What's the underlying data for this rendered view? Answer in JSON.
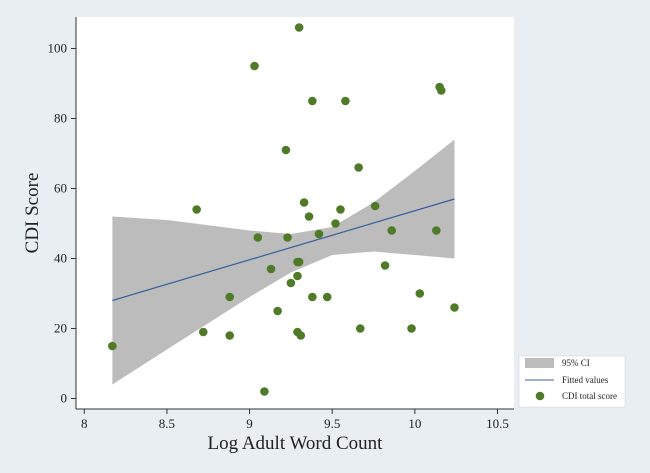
{
  "chart_data": {
    "type": "scatter",
    "xlabel": "Log Adult Word Count",
    "ylabel": "CDI Score",
    "xlim": [
      7.95,
      10.6
    ],
    "ylim": [
      -3,
      109
    ],
    "xticks": [
      8,
      8.5,
      9,
      9.5,
      10,
      10.5
    ],
    "yticks": [
      0,
      20,
      40,
      60,
      80,
      100
    ],
    "grid": false,
    "legend_position": "bottom-right",
    "legend": [
      "95% CI",
      "Fitted values",
      "CDI total score"
    ],
    "colors": {
      "points": "#4f7a28",
      "fit_line": "#34609a",
      "ci_band": "#bcbcbc",
      "plot_bg": "#ffffff",
      "outer_bg": "#e8eef2"
    },
    "fit": {
      "x": [
        8.17,
        10.24
      ],
      "y": [
        28,
        57
      ]
    },
    "ci_band": {
      "x": [
        8.17,
        8.5,
        9.0,
        9.25,
        9.5,
        9.75,
        10.0,
        10.24
      ],
      "lower": [
        4,
        14,
        29,
        36,
        41,
        42,
        41,
        40
      ],
      "upper": [
        52,
        51,
        48,
        47,
        49,
        56,
        65,
        74
      ]
    },
    "points": {
      "x": [
        8.17,
        8.68,
        8.72,
        8.88,
        8.88,
        9.03,
        9.05,
        9.09,
        9.13,
        9.17,
        9.22,
        9.23,
        9.25,
        9.29,
        9.29,
        9.29,
        9.3,
        9.3,
        9.31,
        9.33,
        9.36,
        9.38,
        9.38,
        9.42,
        9.47,
        9.52,
        9.55,
        9.58,
        9.66,
        9.67,
        9.76,
        9.82,
        9.86,
        9.98,
        10.03,
        10.13,
        10.15,
        10.16,
        10.24
      ],
      "y": [
        15,
        54,
        19,
        29,
        18,
        95,
        46,
        2,
        37,
        25,
        71,
        46,
        33,
        35,
        39,
        19,
        106,
        39,
        18,
        56,
        52,
        85,
        29,
        47,
        29,
        50,
        54,
        85,
        66,
        20,
        55,
        38,
        48,
        20,
        30,
        48,
        89,
        88,
        26
      ]
    }
  }
}
